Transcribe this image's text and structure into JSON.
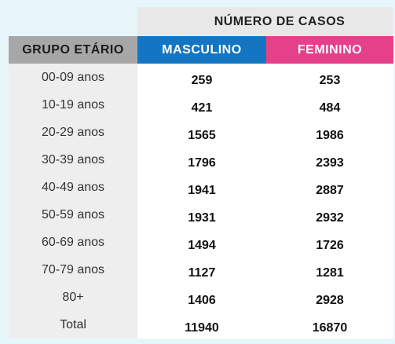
{
  "table": {
    "cases_header": "NÚMERO DE CASOS",
    "age_header": "GRUPO ETÁRIO",
    "male_header": "MASCULINO",
    "female_header": "FEMININO",
    "rows": [
      {
        "age": "00-09 anos",
        "male": "259",
        "female": "253"
      },
      {
        "age": "10-19 anos",
        "male": "421",
        "female": "484"
      },
      {
        "age": "20-29 anos",
        "male": "1565",
        "female": "1986"
      },
      {
        "age": "30-39 anos",
        "male": "1796",
        "female": "2393"
      },
      {
        "age": "40-49 anos",
        "male": "1941",
        "female": "2887"
      },
      {
        "age": "50-59 anos",
        "male": "1931",
        "female": "2932"
      },
      {
        "age": "60-69 anos",
        "male": "1494",
        "female": "1726"
      },
      {
        "age": "70-79 anos",
        "male": "1127",
        "female": "1281"
      },
      {
        "age": "80+",
        "male": "1406",
        "female": "2928"
      },
      {
        "age": "Total",
        "male": "11940",
        "female": "16870"
      }
    ]
  },
  "colors": {
    "background": "#e6f6fb",
    "male": "#1476c2",
    "female": "#e5408a",
    "age_header": "#a7a7a7"
  }
}
